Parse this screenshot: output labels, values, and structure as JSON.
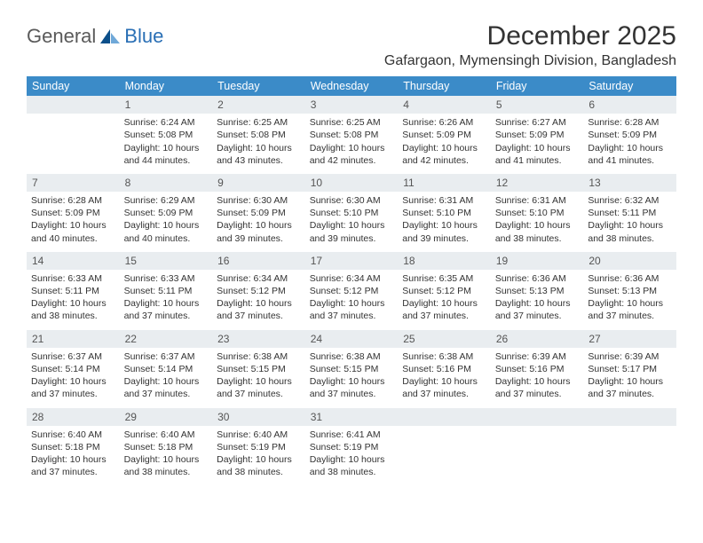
{
  "brand": {
    "part1": "General",
    "part2": "Blue"
  },
  "title": "December 2025",
  "location": "Gafargaon, Mymensingh Division, Bangladesh",
  "colors": {
    "header_bg": "#3b8bc8",
    "daynum_bg": "#e9edf0",
    "header_text": "#ffffff",
    "body_text": "#333333",
    "brand_gray": "#5a5a5a",
    "brand_blue": "#2a6fb5",
    "sail_dark": "#0b4f8a",
    "sail_light": "#6fa8d8"
  },
  "weekdays": [
    "Sunday",
    "Monday",
    "Tuesday",
    "Wednesday",
    "Thursday",
    "Friday",
    "Saturday"
  ],
  "startOffset": 1,
  "days": [
    {
      "n": 1,
      "sunrise": "6:24 AM",
      "sunset": "5:08 PM",
      "dl": "10 hours and 44 minutes."
    },
    {
      "n": 2,
      "sunrise": "6:25 AM",
      "sunset": "5:08 PM",
      "dl": "10 hours and 43 minutes."
    },
    {
      "n": 3,
      "sunrise": "6:25 AM",
      "sunset": "5:08 PM",
      "dl": "10 hours and 42 minutes."
    },
    {
      "n": 4,
      "sunrise": "6:26 AM",
      "sunset": "5:09 PM",
      "dl": "10 hours and 42 minutes."
    },
    {
      "n": 5,
      "sunrise": "6:27 AM",
      "sunset": "5:09 PM",
      "dl": "10 hours and 41 minutes."
    },
    {
      "n": 6,
      "sunrise": "6:28 AM",
      "sunset": "5:09 PM",
      "dl": "10 hours and 41 minutes."
    },
    {
      "n": 7,
      "sunrise": "6:28 AM",
      "sunset": "5:09 PM",
      "dl": "10 hours and 40 minutes."
    },
    {
      "n": 8,
      "sunrise": "6:29 AM",
      "sunset": "5:09 PM",
      "dl": "10 hours and 40 minutes."
    },
    {
      "n": 9,
      "sunrise": "6:30 AM",
      "sunset": "5:09 PM",
      "dl": "10 hours and 39 minutes."
    },
    {
      "n": 10,
      "sunrise": "6:30 AM",
      "sunset": "5:10 PM",
      "dl": "10 hours and 39 minutes."
    },
    {
      "n": 11,
      "sunrise": "6:31 AM",
      "sunset": "5:10 PM",
      "dl": "10 hours and 39 minutes."
    },
    {
      "n": 12,
      "sunrise": "6:31 AM",
      "sunset": "5:10 PM",
      "dl": "10 hours and 38 minutes."
    },
    {
      "n": 13,
      "sunrise": "6:32 AM",
      "sunset": "5:11 PM",
      "dl": "10 hours and 38 minutes."
    },
    {
      "n": 14,
      "sunrise": "6:33 AM",
      "sunset": "5:11 PM",
      "dl": "10 hours and 38 minutes."
    },
    {
      "n": 15,
      "sunrise": "6:33 AM",
      "sunset": "5:11 PM",
      "dl": "10 hours and 37 minutes."
    },
    {
      "n": 16,
      "sunrise": "6:34 AM",
      "sunset": "5:12 PM",
      "dl": "10 hours and 37 minutes."
    },
    {
      "n": 17,
      "sunrise": "6:34 AM",
      "sunset": "5:12 PM",
      "dl": "10 hours and 37 minutes."
    },
    {
      "n": 18,
      "sunrise": "6:35 AM",
      "sunset": "5:12 PM",
      "dl": "10 hours and 37 minutes."
    },
    {
      "n": 19,
      "sunrise": "6:36 AM",
      "sunset": "5:13 PM",
      "dl": "10 hours and 37 minutes."
    },
    {
      "n": 20,
      "sunrise": "6:36 AM",
      "sunset": "5:13 PM",
      "dl": "10 hours and 37 minutes."
    },
    {
      "n": 21,
      "sunrise": "6:37 AM",
      "sunset": "5:14 PM",
      "dl": "10 hours and 37 minutes."
    },
    {
      "n": 22,
      "sunrise": "6:37 AM",
      "sunset": "5:14 PM",
      "dl": "10 hours and 37 minutes."
    },
    {
      "n": 23,
      "sunrise": "6:38 AM",
      "sunset": "5:15 PM",
      "dl": "10 hours and 37 minutes."
    },
    {
      "n": 24,
      "sunrise": "6:38 AM",
      "sunset": "5:15 PM",
      "dl": "10 hours and 37 minutes."
    },
    {
      "n": 25,
      "sunrise": "6:38 AM",
      "sunset": "5:16 PM",
      "dl": "10 hours and 37 minutes."
    },
    {
      "n": 26,
      "sunrise": "6:39 AM",
      "sunset": "5:16 PM",
      "dl": "10 hours and 37 minutes."
    },
    {
      "n": 27,
      "sunrise": "6:39 AM",
      "sunset": "5:17 PM",
      "dl": "10 hours and 37 minutes."
    },
    {
      "n": 28,
      "sunrise": "6:40 AM",
      "sunset": "5:18 PM",
      "dl": "10 hours and 37 minutes."
    },
    {
      "n": 29,
      "sunrise": "6:40 AM",
      "sunset": "5:18 PM",
      "dl": "10 hours and 38 minutes."
    },
    {
      "n": 30,
      "sunrise": "6:40 AM",
      "sunset": "5:19 PM",
      "dl": "10 hours and 38 minutes."
    },
    {
      "n": 31,
      "sunrise": "6:41 AM",
      "sunset": "5:19 PM",
      "dl": "10 hours and 38 minutes."
    }
  ],
  "labels": {
    "sunrise": "Sunrise:",
    "sunset": "Sunset:",
    "daylight": "Daylight:"
  }
}
